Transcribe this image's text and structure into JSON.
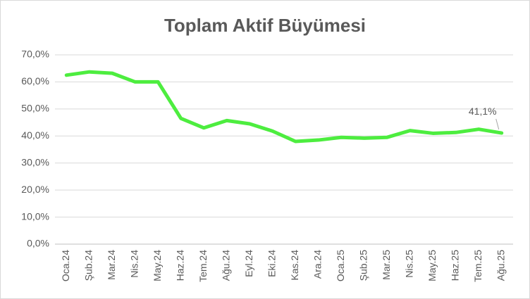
{
  "chart_data": {
    "type": "line",
    "title": "Toplam Aktif Büyümesi",
    "categories": [
      "Oca.24",
      "Şub.24",
      "Mar.24",
      "Nis.24",
      "May.24",
      "Haz.24",
      "Tem.24",
      "Ağu.24",
      "Eyl.24",
      "Eki.24",
      "Kas.24",
      "Ara.24",
      "Oca.25",
      "Şub.25",
      "Mar.25",
      "Nis.25",
      "May.25",
      "Haz.25",
      "Tem.25",
      "Ağu.25"
    ],
    "series": [
      {
        "name": "Toplam Aktif Büyümesi",
        "color": "#4ded3f",
        "values": [
          62.5,
          63.7,
          63.2,
          60.0,
          60.0,
          46.5,
          43.0,
          45.7,
          44.5,
          41.8,
          38.0,
          38.5,
          39.5,
          39.2,
          39.5,
          42.0,
          41.0,
          41.3,
          42.5,
          41.1
        ],
        "value_labels": [
          null,
          null,
          null,
          null,
          null,
          null,
          null,
          null,
          null,
          null,
          null,
          null,
          null,
          null,
          null,
          null,
          null,
          null,
          null,
          "41,1%"
        ]
      }
    ],
    "ylim": [
      0,
      70
    ],
    "yticks": [
      {
        "value": 0,
        "label": "0,0%"
      },
      {
        "value": 10,
        "label": "10,0%"
      },
      {
        "value": 20,
        "label": "20,0%"
      },
      {
        "value": 30,
        "label": "30,0%"
      },
      {
        "value": 40,
        "label": "40,0%"
      },
      {
        "value": 50,
        "label": "50,0%"
      },
      {
        "value": 60,
        "label": "60,0%"
      },
      {
        "value": 70,
        "label": "70,0%"
      }
    ],
    "grid": true
  }
}
